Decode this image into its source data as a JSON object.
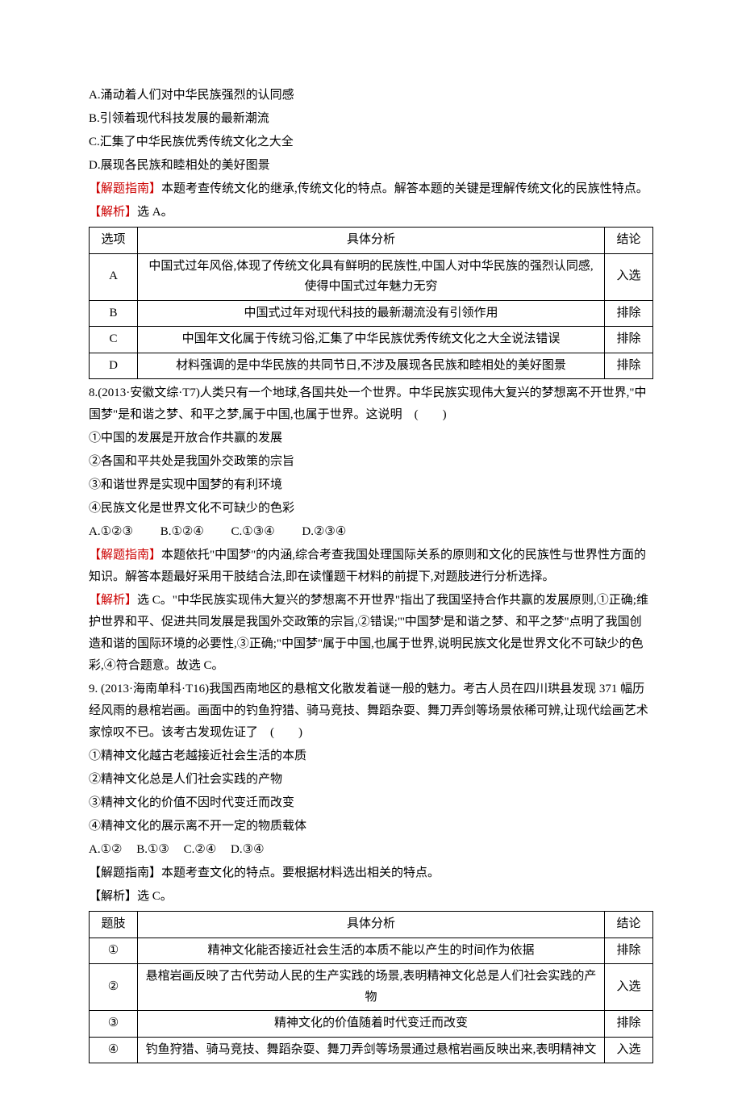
{
  "section1": {
    "optA": "A.涌动着人们对中华民族强烈的认同感",
    "optB": "B.引领着现代科技发展的最新潮流",
    "optC": "C.汇集了中华民族优秀传统文化之大全",
    "optD": "D.展现各民族和睦相处的美好图景",
    "guide_label": "【解题指南】",
    "guide_text": "本题考查传统文化的继承,传统文化的特点。解答本题的关键是理解传统文化的民族性特点。",
    "analysis_label": "【解析】",
    "analysis_text": "选 A。",
    "table": {
      "header": [
        "选项",
        "具体分析",
        "结论"
      ],
      "rows": [
        {
          "opt": "A",
          "text": "中国式过年风俗,体现了传统文化具有鲜明的民族性,中国人对中华民族的强烈认同感,使得中国式过年魅力无穷",
          "res": "入选"
        },
        {
          "opt": "B",
          "text": "中国式过年对现代科技的最新潮流没有引领作用",
          "res": "排除"
        },
        {
          "opt": "C",
          "text": "中国年文化属于传统习俗,汇集了中华民族优秀传统文化之大全说法错误",
          "res": "排除"
        },
        {
          "opt": "D",
          "text": "材料强调的是中华民族的共同节日,不涉及展现各民族和睦相处的美好图景",
          "res": "排除"
        }
      ]
    }
  },
  "q8": {
    "stem1": "8.(2013·安徽文综·T7)人类只有一个地球,各国共处一个世界。中华民族实现伟大复兴的梦想离不开世界,\"中国梦\"是和谐之梦、和平之梦,属于中国,也属于世界。这说明　(　　)",
    "s1": "①中国的发展是开放合作共赢的发展",
    "s2": "②各国和平共处是我国外交政策的宗旨",
    "s3": "③和谐世界是实现中国梦的有利环境",
    "s4": "④民族文化是世界文化不可缺少的色彩",
    "optA": "A.①②③",
    "optB": "B.①②④",
    "optC": "C.①③④",
    "optD": "D.②③④",
    "guide_label": "【解题指南】",
    "guide_text": "本题依托\"中国梦\"的内涵,综合考查我国处理国际关系的原则和文化的民族性与世界性方面的知识。解答本题最好采用干肢结合法,即在读懂题干材料的前提下,对题肢进行分析选择。",
    "analysis_label": "【解析】",
    "analysis_text": "选 C。\"中华民族实现伟大复兴的梦想离不开世界\"指出了我国坚持合作共赢的发展原则,①正确;维护世界和平、促进共同发展是我国外交政策的宗旨,②错误;\"'中国梦'是和谐之梦、和平之梦\"点明了我国创造和谐的国际环境的必要性,③正确;\"中国梦\"属于中国,也属于世界,说明民族文化是世界文化不可缺少的色彩,④符合题意。故选 C。"
  },
  "q9": {
    "stem": "9. (2013·海南单科·T16)我国西南地区的悬棺文化散发着谜一般的魅力。考古人员在四川珙县发现 371 幅历经风雨的悬棺岩画。画面中的钓鱼狩猎、骑马竞技、舞蹈杂耍、舞刀弄剑等场景依稀可辨,让现代绘画艺术家惊叹不已。该考古发现佐证了　(　　)",
    "s1": "①精神文化越古老越接近社会生活的本质",
    "s2": "②精神文化总是人们社会实践的产物",
    "s3": "③精神文化的价值不因时代变迁而改变",
    "s4": "④精神文化的展示离不开一定的物质载体",
    "optA": "A.①②",
    "optB": "B.①③",
    "optC": "C.②④",
    "optD": "D.③④",
    "guide_label": "【解题指南】",
    "guide_text": "本题考查文化的特点。要根据材料选出相关的特点。",
    "analysis_label": "【解析】",
    "analysis_text": "选 C。",
    "table": {
      "header": [
        "题肢",
        "具体分析",
        "结论"
      ],
      "rows": [
        {
          "opt": "①",
          "text": "精神文化能否接近社会生活的本质不能以产生的时间作为依据",
          "res": "排除"
        },
        {
          "opt": "②",
          "text": "悬棺岩画反映了古代劳动人民的生产实践的场景,表明精神文化总是人们社会实践的产物",
          "res": "入选"
        },
        {
          "opt": "③",
          "text": "精神文化的价值随着时代变迁而改变",
          "res": "排除"
        },
        {
          "opt": "④",
          "text": "钓鱼狩猎、骑马竞技、舞蹈杂耍、舞刀弄剑等场景通过悬棺岩画反映出来,表明精神文",
          "res": "入选"
        }
      ]
    }
  }
}
